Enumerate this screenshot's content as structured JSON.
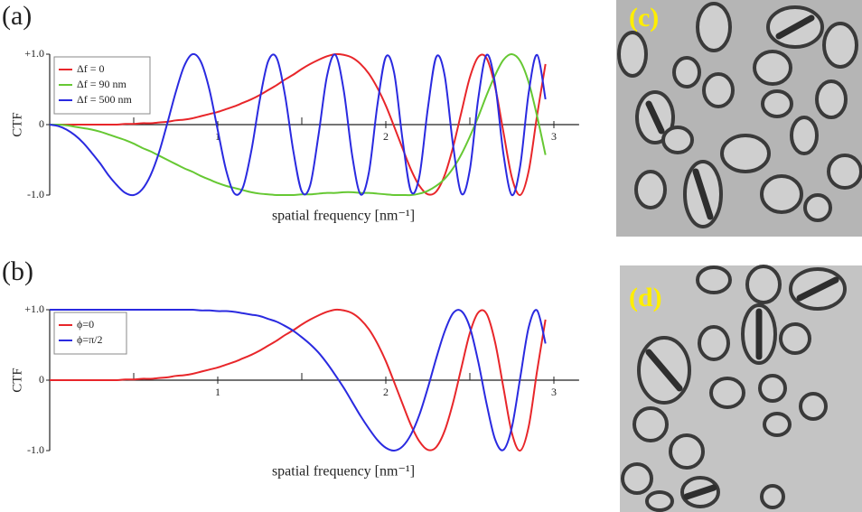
{
  "chart_data": [
    {
      "type": "line",
      "label": "(a)",
      "ylabel": "CTF",
      "xlabel": "spatial frequency [nm⁻¹]",
      "xlim": [
        0,
        3.15
      ],
      "ylim": [
        -1,
        1
      ],
      "xticks": [
        1,
        2,
        3
      ],
      "xminorticks": [
        0.5,
        1.5,
        2.5
      ],
      "yticks": [
        {
          "value": 1,
          "label": "+1.0"
        },
        0,
        {
          "value": -1,
          "label": "-1.0"
        }
      ],
      "legend": "upper left",
      "x": [
        0,
        0.05,
        0.1,
        0.15,
        0.2,
        0.25,
        0.3,
        0.35,
        0.4,
        0.45,
        0.5,
        0.55,
        0.6,
        0.65,
        0.7,
        0.75,
        0.8,
        0.85,
        0.9,
        0.95,
        1,
        1.05,
        1.1,
        1.15,
        1.2,
        1.25,
        1.3,
        1.35,
        1.4,
        1.45,
        1.5,
        1.55,
        1.6,
        1.65,
        1.7,
        1.75,
        1.8,
        1.85,
        1.9,
        1.95,
        2,
        2.05,
        2.1,
        2.15,
        2.2,
        2.25,
        2.3,
        2.35,
        2.4,
        2.45,
        2.5,
        2.55,
        2.6,
        2.65,
        2.7,
        2.75,
        2.8,
        2.85,
        2.9,
        2.95
      ],
      "series": [
        {
          "name": "Δf = 0",
          "color": "#e8262a",
          "values": [
            0,
            0,
            0,
            0,
            0,
            0,
            0,
            0,
            0,
            0.01,
            0.01,
            0.02,
            0.02,
            0.03,
            0.04,
            0.06,
            0.07,
            0.09,
            0.12,
            0.15,
            0.18,
            0.22,
            0.26,
            0.31,
            0.36,
            0.42,
            0.49,
            0.56,
            0.64,
            0.71,
            0.79,
            0.86,
            0.92,
            0.97,
            1,
            0.99,
            0.95,
            0.86,
            0.72,
            0.52,
            0.27,
            -0.03,
            -0.34,
            -0.64,
            -0.87,
            -0.99,
            -0.95,
            -0.72,
            -0.32,
            0.18,
            0.67,
            0.96,
            0.94,
            0.54,
            -0.11,
            -0.75,
            -1,
            -0.66,
            0.13,
            0.86
          ]
        },
        {
          "name": "Δf = 90 nm",
          "color": "#66c833",
          "values": [
            0,
            0,
            -0.01,
            -0.03,
            -0.05,
            -0.07,
            -0.1,
            -0.14,
            -0.18,
            -0.22,
            -0.27,
            -0.33,
            -0.38,
            -0.44,
            -0.5,
            -0.56,
            -0.62,
            -0.67,
            -0.73,
            -0.78,
            -0.83,
            -0.87,
            -0.9,
            -0.93,
            -0.96,
            -0.98,
            -0.99,
            -1,
            -1,
            -1,
            -0.99,
            -0.99,
            -0.98,
            -0.97,
            -0.97,
            -0.96,
            -0.96,
            -0.97,
            -0.97,
            -0.98,
            -0.99,
            -1,
            -1,
            -1,
            -0.98,
            -0.94,
            -0.87,
            -0.77,
            -0.62,
            -0.42,
            -0.17,
            0.11,
            0.42,
            0.7,
            0.92,
            1,
            0.9,
            0.6,
            0.12,
            -0.43
          ]
        },
        {
          "name": "Δf = 500 nm",
          "color": "#2a2ae0",
          "values": [
            0,
            -0.02,
            -0.07,
            -0.15,
            -0.26,
            -0.4,
            -0.55,
            -0.72,
            -0.86,
            -0.97,
            -1,
            -0.92,
            -0.72,
            -0.4,
            0.02,
            0.46,
            0.83,
            1,
            0.89,
            0.5,
            -0.08,
            -0.65,
            -0.98,
            -0.89,
            -0.37,
            0.35,
            0.9,
            0.95,
            0.42,
            -0.38,
            -0.95,
            -0.86,
            -0.14,
            0.69,
            0.99,
            0.48,
            -0.44,
            -0.99,
            -0.67,
            0.28,
            0.96,
            0.73,
            -0.22,
            -0.95,
            -0.73,
            0.23,
            0.96,
            0.7,
            -0.29,
            -0.98,
            -0.64,
            0.37,
            0.99,
            0.58,
            -0.42,
            -1,
            -0.58,
            0.45,
            0.99,
            0.36
          ]
        }
      ]
    },
    {
      "type": "line",
      "label": "(b)",
      "ylabel": "CTF",
      "xlabel": "spatial frequency [nm⁻¹]",
      "xlim": [
        0,
        3.15
      ],
      "ylim": [
        -1,
        1
      ],
      "xticks": [
        1,
        2,
        3
      ],
      "xminorticks": [
        0.5,
        1.5,
        2.5
      ],
      "yticks": [
        {
          "value": 1,
          "label": "+1.0"
        },
        0,
        {
          "value": -1,
          "label": "-1.0"
        }
      ],
      "legend": "upper left",
      "x": [
        0,
        0.05,
        0.1,
        0.15,
        0.2,
        0.25,
        0.3,
        0.35,
        0.4,
        0.45,
        0.5,
        0.55,
        0.6,
        0.65,
        0.7,
        0.75,
        0.8,
        0.85,
        0.9,
        0.95,
        1,
        1.05,
        1.1,
        1.15,
        1.2,
        1.25,
        1.3,
        1.35,
        1.4,
        1.45,
        1.5,
        1.55,
        1.6,
        1.65,
        1.7,
        1.75,
        1.8,
        1.85,
        1.9,
        1.95,
        2,
        2.05,
        2.1,
        2.15,
        2.2,
        2.25,
        2.3,
        2.35,
        2.4,
        2.45,
        2.5,
        2.55,
        2.6,
        2.65,
        2.7,
        2.75,
        2.8,
        2.85,
        2.9,
        2.95
      ],
      "series": [
        {
          "name": "ϕ=0",
          "color": "#e8262a",
          "values": [
            0,
            0,
            0,
            0,
            0,
            0,
            0,
            0,
            0,
            0.01,
            0.01,
            0.02,
            0.02,
            0.03,
            0.04,
            0.06,
            0.07,
            0.09,
            0.12,
            0.15,
            0.18,
            0.22,
            0.26,
            0.31,
            0.36,
            0.42,
            0.49,
            0.56,
            0.64,
            0.71,
            0.79,
            0.86,
            0.92,
            0.97,
            1,
            0.99,
            0.95,
            0.86,
            0.72,
            0.52,
            0.27,
            -0.03,
            -0.34,
            -0.64,
            -0.87,
            -0.99,
            -0.95,
            -0.72,
            -0.32,
            0.18,
            0.67,
            0.96,
            0.94,
            0.54,
            -0.11,
            -0.75,
            -1,
            -0.66,
            0.13,
            0.86
          ]
        },
        {
          "name": "ϕ=π/2",
          "color": "#2a2ae0",
          "values": [
            1,
            1,
            1,
            1,
            1,
            1,
            1,
            1,
            1,
            1,
            1,
            1,
            1,
            1,
            1,
            1,
            1,
            1,
            0.99,
            0.99,
            0.98,
            0.98,
            0.97,
            0.95,
            0.93,
            0.91,
            0.87,
            0.83,
            0.77,
            0.7,
            0.61,
            0.51,
            0.39,
            0.24,
            0.07,
            -0.11,
            -0.31,
            -0.51,
            -0.69,
            -0.85,
            -0.96,
            -1,
            -0.94,
            -0.77,
            -0.49,
            -0.11,
            0.31,
            0.69,
            0.95,
            0.98,
            0.75,
            0.26,
            -0.34,
            -0.84,
            -0.99,
            -0.67,
            0.04,
            0.75,
            0.99,
            0.52
          ]
        }
      ]
    }
  ],
  "images": [
    {
      "label": "(c)"
    },
    {
      "label": "(d)"
    }
  ]
}
